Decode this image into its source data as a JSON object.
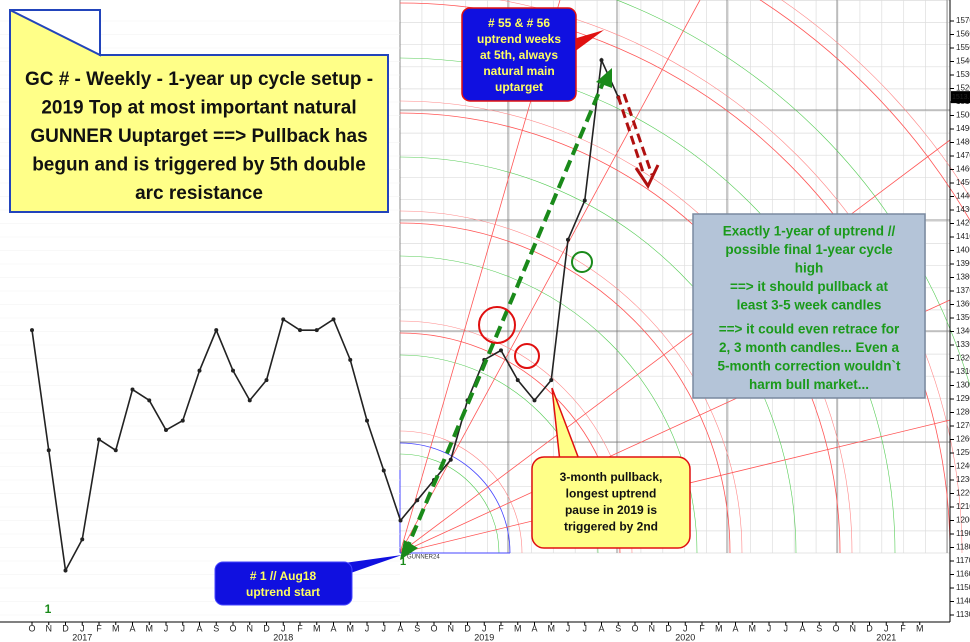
{
  "chart_data": {
    "type": "line",
    "title": [
      "GC # - Weekly - 1-year up cycle setup -",
      "2019 Top at most important natural",
      "GUNNER Uuptarget ==> Pullback has",
      "begun and is triggered by 5th double",
      "arc resistance"
    ],
    "categories": [
      "O",
      "N",
      "D",
      "J",
      "F",
      "M",
      "A",
      "M",
      "J",
      "J",
      "A",
      "S",
      "O",
      "N",
      "D",
      "J",
      "F",
      "M",
      "A",
      "M",
      "J",
      "J",
      "A",
      "S",
      "O",
      "N",
      "D",
      "J",
      "F",
      "M",
      "A",
      "M",
      "J",
      "J",
      "A",
      "S",
      "O",
      "N",
      "D",
      "J",
      "F",
      "M",
      "A",
      "M",
      "J",
      "J",
      "A",
      "S",
      "O",
      "N",
      "D",
      "J",
      "F",
      "M"
    ],
    "year_labels": [
      null,
      null,
      null,
      "2017",
      null,
      null,
      null,
      null,
      null,
      null,
      null,
      null,
      null,
      null,
      null,
      "2018",
      null,
      null,
      null,
      null,
      null,
      null,
      null,
      null,
      null,
      null,
      null,
      "2019",
      null,
      null,
      null,
      null,
      null,
      null,
      null,
      null,
      null,
      null,
      null,
      "2020",
      null,
      null,
      null,
      null,
      null,
      null,
      null,
      null,
      null,
      null,
      null,
      "2021",
      null,
      null
    ],
    "values": [
      1341,
      1252,
      1163,
      1186,
      1260,
      1252,
      1297,
      1289,
      1267,
      1274,
      1311,
      1341,
      1311,
      1289,
      1304,
      1349,
      1341,
      1341,
      1349,
      1319,
      1274,
      1237,
      1200,
      1215,
      1230,
      1245,
      1289,
      1319,
      1326,
      1304,
      1289,
      1304,
      1408,
      1437,
      1541,
      1513.6,
      null,
      null,
      null,
      null,
      null,
      null,
      null,
      null,
      null,
      null,
      null,
      null,
      null,
      null,
      null,
      null,
      null,
      null
    ],
    "color": "#222222",
    "last_price": 1513.6,
    "ylim": [
      1125,
      1575
    ],
    "yticks": [
      1130,
      1140,
      1150,
      1160,
      1170,
      1180,
      1190,
      1200,
      1210,
      1220,
      1230,
      1240,
      1250,
      1260,
      1270,
      1280,
      1290,
      1300,
      1310,
      1320,
      1330,
      1340,
      1350,
      1360,
      1370,
      1380,
      1390,
      1400,
      1410,
      1420,
      1430,
      1440,
      1450,
      1460,
      1470,
      1480,
      1490,
      1500,
      1510,
      1520,
      1530,
      1540,
      1550,
      1560,
      1570
    ],
    "grid": true,
    "annotations": {
      "top_target": [
        "# 55 & # 56",
        "uptrend weeks",
        "at 5th, always",
        "natural  main",
        "uptarget"
      ],
      "cycle_note": [
        [
          "Exactly 1-year of uptrend //",
          "possible final 1-year cycle",
          "high",
          "==> it should pullback at",
          "least 3-5 week candles"
        ],
        [
          "==> it could even retrace for",
          "2, 3 month candles... Even a",
          "5-month correction wouldn`t",
          "harm bull market..."
        ]
      ],
      "pullback_note": [
        "3-month pullback,",
        "longest uptrend",
        "pause in 2019 is",
        "triggered by 2nd"
      ],
      "start_note": [
        "# 1 // Aug18",
        "uptrend start"
      ],
      "cycle_marks": [
        "1",
        "1"
      ],
      "signature": "GUNNER24"
    }
  }
}
